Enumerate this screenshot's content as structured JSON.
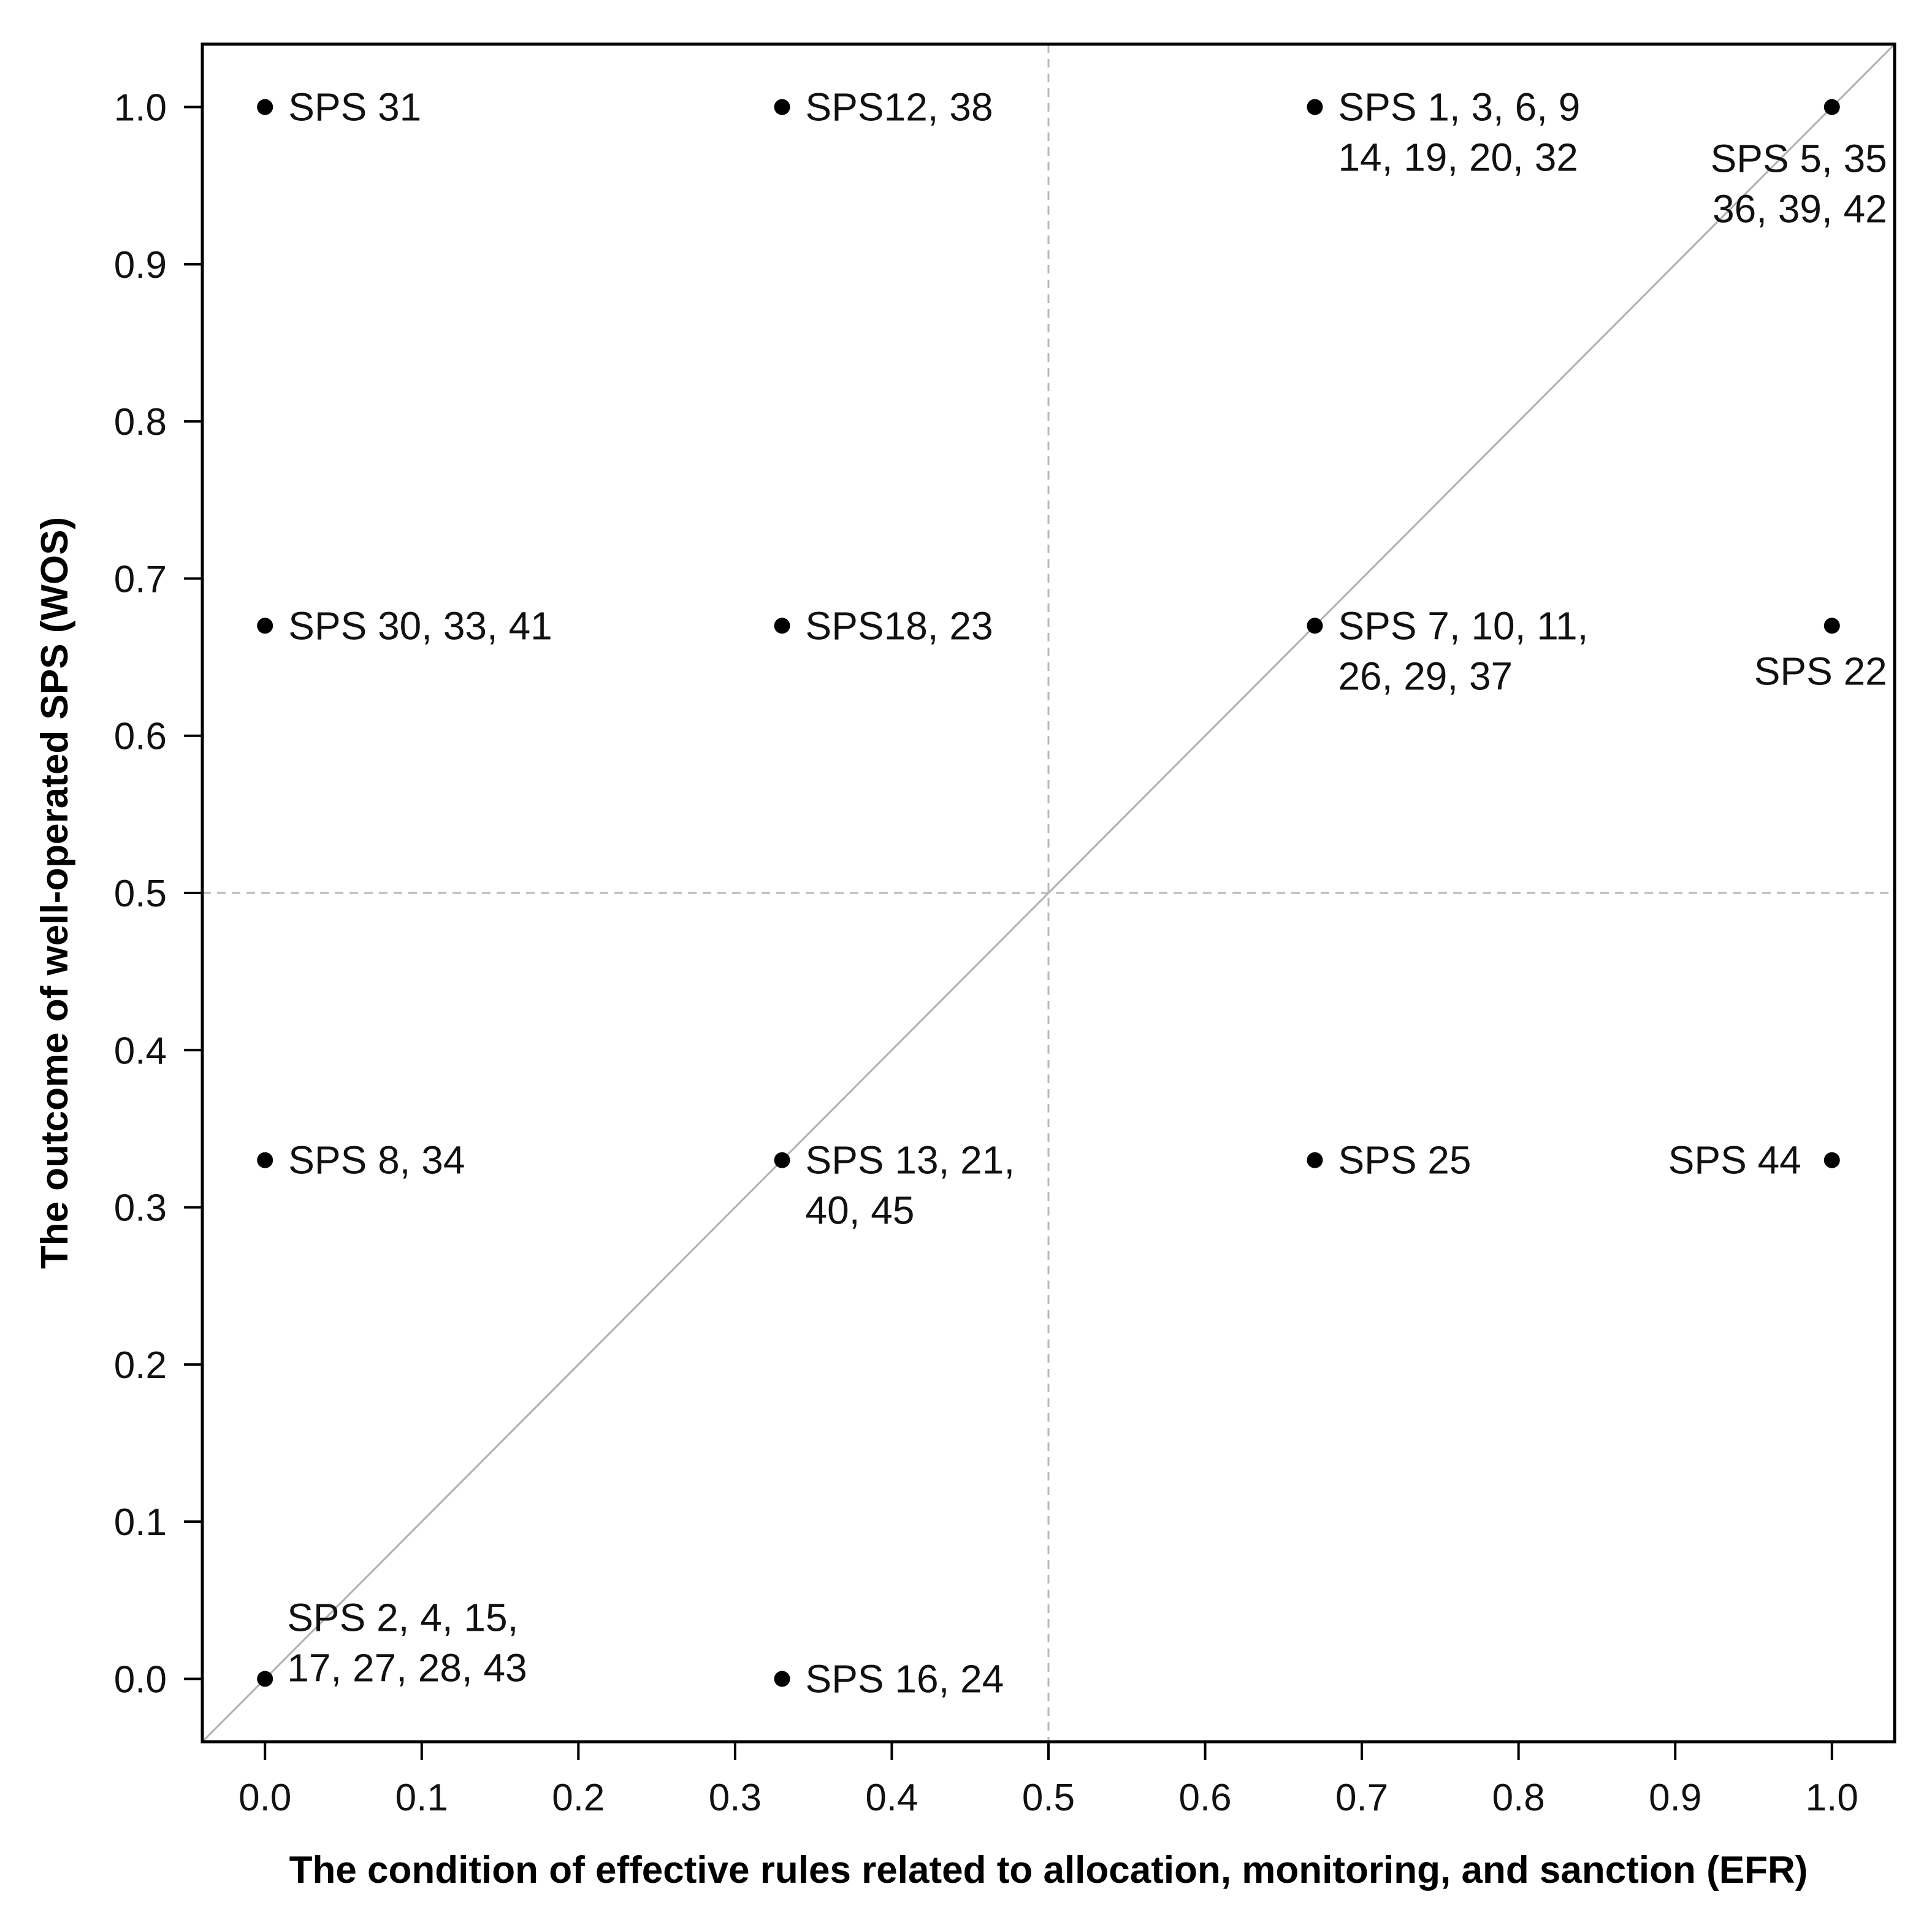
{
  "chart_data": {
    "type": "scatter",
    "title": "",
    "xlabel": "The condition of effective rules related to allocation, monitoring, and sanction (EFR)",
    "ylabel": "The outcome of well-operated SPS (WOS)",
    "xlim": [
      -0.04,
      1.04
    ],
    "ylim": [
      -0.04,
      1.04
    ],
    "xticks": [
      "0.0",
      "0.1",
      "0.2",
      "0.3",
      "0.4",
      "0.5",
      "0.6",
      "0.7",
      "0.8",
      "0.9",
      "1.0"
    ],
    "yticks": [
      "0.0",
      "0.1",
      "0.2",
      "0.3",
      "0.4",
      "0.5",
      "0.6",
      "0.7",
      "0.8",
      "0.9",
      "1.0"
    ],
    "grid": false,
    "reference_lines": {
      "diagonal": true,
      "vertical": 0.5,
      "horizontal": 0.5,
      "style": "dashed"
    },
    "points": [
      {
        "x": 0.0,
        "y": 1.0,
        "label": [
          "SPS 31"
        ]
      },
      {
        "x": 0.33,
        "y": 1.0,
        "label": [
          "SPS12, 38"
        ]
      },
      {
        "x": 0.67,
        "y": 1.0,
        "label": [
          "SPS 1, 3, 6, 9",
          "14, 19, 20, 32"
        ]
      },
      {
        "x": 1.0,
        "y": 1.0,
        "label": [
          "SPS 5, 35",
          "36, 39, 42"
        ]
      },
      {
        "x": 0.0,
        "y": 0.67,
        "label": [
          "SPS 30, 33, 41"
        ]
      },
      {
        "x": 0.33,
        "y": 0.67,
        "label": [
          "SPS18, 23"
        ]
      },
      {
        "x": 0.67,
        "y": 0.67,
        "label": [
          "SPS 7, 10, 11,",
          "26, 29, 37"
        ]
      },
      {
        "x": 1.0,
        "y": 0.67,
        "label": [
          "SPS 22"
        ]
      },
      {
        "x": 0.0,
        "y": 0.33,
        "label": [
          "SPS 8, 34"
        ]
      },
      {
        "x": 0.33,
        "y": 0.33,
        "label": [
          "SPS 13, 21,",
          "40, 45"
        ]
      },
      {
        "x": 0.67,
        "y": 0.33,
        "label": [
          "SPS 25"
        ]
      },
      {
        "x": 1.0,
        "y": 0.33,
        "label": [
          "SPS 44"
        ]
      },
      {
        "x": 0.0,
        "y": 0.0,
        "label": [
          "SPS 2, 4, 15,",
          "17, 27, 28, 43"
        ]
      },
      {
        "x": 0.33,
        "y": 0.0,
        "label": [
          "SPS 16, 24"
        ]
      }
    ]
  }
}
